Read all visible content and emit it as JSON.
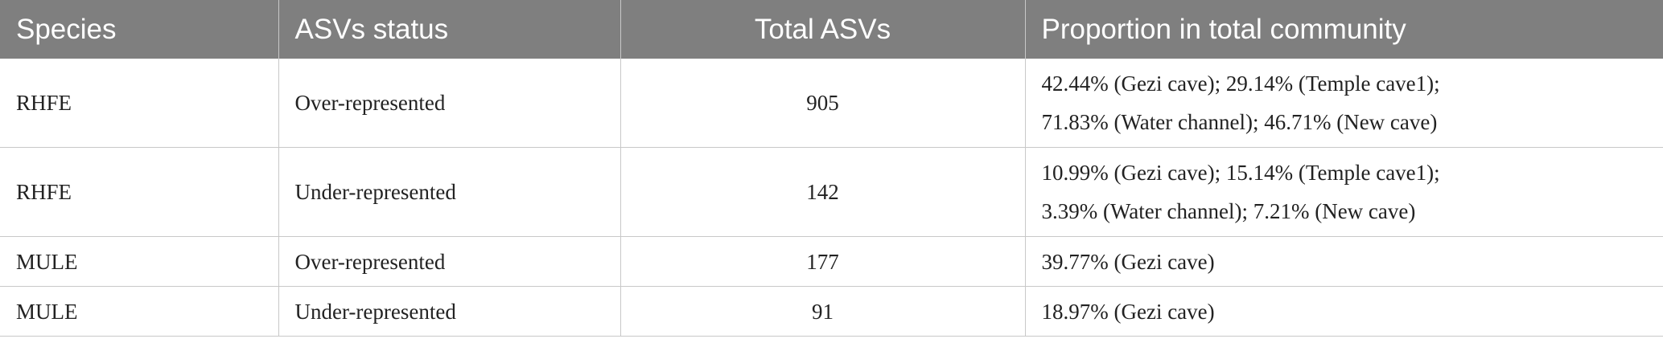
{
  "table": {
    "headers": [
      "Species",
      "ASVs status",
      "Total ASVs",
      "Proportion in total community"
    ],
    "rows": [
      {
        "species": "RHFE",
        "status": "Over-represented",
        "total": "905",
        "proportion": [
          "42.44% (Gezi cave); 29.14% (Temple cave1);",
          "71.83% (Water channel); 46.71% (New cave)"
        ]
      },
      {
        "species": "RHFE",
        "status": "Under-represented",
        "total": "142",
        "proportion": [
          "10.99% (Gezi cave); 15.14% (Temple cave1);",
          "3.39% (Water channel); 7.21% (New cave)"
        ]
      },
      {
        "species": "MULE",
        "status": "Over-represented",
        "total": "177",
        "proportion": [
          "39.77% (Gezi cave)"
        ]
      },
      {
        "species": "MULE",
        "status": "Under-represented",
        "total": "91",
        "proportion": [
          "18.97% (Gezi cave)"
        ]
      }
    ]
  },
  "colors": {
    "header_bg": "#7f7f7f",
    "header_text": "#ffffff",
    "grid": "#c8c8c8",
    "body_text": "#222222"
  }
}
